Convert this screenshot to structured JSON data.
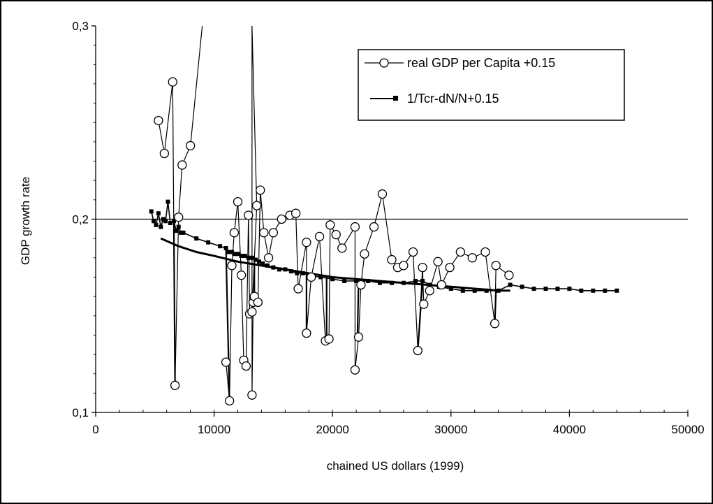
{
  "chart_data": {
    "type": "scatter",
    "title": "",
    "xlabel": "chained US dollars (1999)",
    "ylabel": "GDP growth rate",
    "xlim": [
      0,
      50000
    ],
    "ylim": [
      0.1,
      0.3
    ],
    "x_ticks": [
      0,
      10000,
      20000,
      30000,
      40000,
      50000
    ],
    "x_tick_labels": [
      "0",
      "10000",
      "20000",
      "30000",
      "40000",
      "50000"
    ],
    "y_ticks": [
      0.1,
      0.2,
      0.3
    ],
    "y_tick_labels": [
      "0,1",
      "0,2",
      "0,3"
    ],
    "reference_line_y": 0.2,
    "legend_position": "top-right",
    "grid": false,
    "series": [
      {
        "name": "real GDP per Capita +0.15",
        "marker": "open-circle",
        "color": "#000000",
        "points": [
          [
            5300,
            0.251
          ],
          [
            5800,
            0.234
          ],
          [
            6500,
            0.271
          ],
          [
            6700,
            0.114
          ],
          [
            7000,
            0.201
          ],
          [
            7300,
            0.228
          ],
          [
            8000,
            0.238
          ],
          [
            9000,
            0.3
          ]
        ],
        "points_b": [
          [
            13200,
            0.3
          ],
          [
            13200,
            0.109
          ],
          [
            13300,
            0.157
          ],
          [
            13400,
            0.16
          ],
          [
            13700,
            0.157
          ],
          [
            13900,
            0.215
          ],
          [
            14200,
            0.193
          ],
          [
            14600,
            0.18
          ],
          [
            15000,
            0.193
          ],
          [
            15700,
            0.2
          ],
          [
            16400,
            0.202
          ],
          [
            16900,
            0.203
          ],
          [
            17100,
            0.164
          ],
          [
            17800,
            0.188
          ],
          [
            17800,
            0.141
          ],
          [
            18200,
            0.17
          ],
          [
            18900,
            0.191
          ],
          [
            19400,
            0.137
          ],
          [
            19700,
            0.138
          ],
          [
            19800,
            0.197
          ],
          [
            20300,
            0.192
          ],
          [
            20800,
            0.185
          ],
          [
            21900,
            0.196
          ],
          [
            21900,
            0.122
          ],
          [
            22200,
            0.139
          ],
          [
            22400,
            0.166
          ],
          [
            22700,
            0.182
          ],
          [
            23500,
            0.196
          ],
          [
            24200,
            0.213
          ],
          [
            25000,
            0.179
          ],
          [
            25500,
            0.175
          ],
          [
            26000,
            0.176
          ],
          [
            26800,
            0.183
          ],
          [
            27200,
            0.132
          ],
          [
            27600,
            0.175
          ],
          [
            27700,
            0.156
          ],
          [
            28200,
            0.163
          ],
          [
            28900,
            0.178
          ],
          [
            29200,
            0.166
          ],
          [
            29900,
            0.175
          ],
          [
            30800,
            0.183
          ],
          [
            31800,
            0.18
          ],
          [
            32900,
            0.183
          ],
          [
            33700,
            0.146
          ],
          [
            33800,
            0.176
          ],
          [
            34900,
            0.171
          ]
        ],
        "points_c": [
          [
            11000,
            0.126
          ],
          [
            11300,
            0.106
          ],
          [
            11500,
            0.176
          ],
          [
            11700,
            0.193
          ],
          [
            12000,
            0.209
          ],
          [
            12300,
            0.171
          ],
          [
            12500,
            0.127
          ],
          [
            12700,
            0.124
          ],
          [
            12900,
            0.202
          ],
          [
            13000,
            0.151
          ],
          [
            13200,
            0.152
          ],
          [
            13600,
            0.207
          ]
        ]
      },
      {
        "name": "1/Tcr-dN/N+0.15",
        "marker": "filled-square",
        "color": "#000000",
        "points": [
          [
            4700,
            0.204
          ],
          [
            4900,
            0.199
          ],
          [
            5100,
            0.197
          ],
          [
            5300,
            0.203
          ],
          [
            5500,
            0.196
          ],
          [
            5700,
            0.2
          ],
          [
            5900,
            0.199
          ],
          [
            6100,
            0.209
          ],
          [
            6300,
            0.198
          ],
          [
            6600,
            0.199
          ],
          [
            6800,
            0.194
          ],
          [
            7000,
            0.196
          ],
          [
            7200,
            0.193
          ],
          [
            7400,
            0.193
          ],
          [
            8500,
            0.19
          ],
          [
            9500,
            0.188
          ],
          [
            10500,
            0.186
          ],
          [
            11000,
            0.185
          ],
          [
            11200,
            0.183
          ],
          [
            11500,
            0.183
          ],
          [
            11700,
            0.182
          ],
          [
            12000,
            0.182
          ],
          [
            12300,
            0.181
          ],
          [
            12600,
            0.181
          ],
          [
            12900,
            0.18
          ],
          [
            13200,
            0.18
          ],
          [
            13500,
            0.179
          ],
          [
            13800,
            0.178
          ],
          [
            14100,
            0.177
          ],
          [
            14500,
            0.176
          ],
          [
            15000,
            0.175
          ],
          [
            15500,
            0.174
          ],
          [
            16000,
            0.174
          ],
          [
            16500,
            0.173
          ],
          [
            17000,
            0.172
          ],
          [
            17500,
            0.172
          ],
          [
            18000,
            0.171
          ],
          [
            19000,
            0.17
          ],
          [
            20000,
            0.169
          ],
          [
            21000,
            0.168
          ],
          [
            22000,
            0.168
          ],
          [
            22500,
            0.168
          ],
          [
            23000,
            0.168
          ],
          [
            24000,
            0.167
          ],
          [
            25000,
            0.167
          ],
          [
            26000,
            0.167
          ],
          [
            27000,
            0.168
          ],
          [
            27600,
            0.168
          ],
          [
            28200,
            0.166
          ],
          [
            29000,
            0.165
          ],
          [
            30000,
            0.164
          ],
          [
            31000,
            0.163
          ],
          [
            32000,
            0.163
          ],
          [
            33000,
            0.163
          ],
          [
            34000,
            0.163
          ],
          [
            35000,
            0.166
          ],
          [
            36000,
            0.165
          ],
          [
            37000,
            0.164
          ],
          [
            38000,
            0.164
          ],
          [
            39000,
            0.164
          ],
          [
            40000,
            0.164
          ],
          [
            41000,
            0.163
          ],
          [
            42000,
            0.163
          ],
          [
            43000,
            0.163
          ],
          [
            44000,
            0.163
          ]
        ],
        "drops": [
          [
            [
              6600,
              0.198
            ],
            [
              6700,
              0.114
            ]
          ],
          [
            [
              11000,
              0.185
            ],
            [
              11300,
              0.106
            ]
          ],
          [
            [
              13400,
              0.18
            ],
            [
              13400,
              0.157
            ]
          ],
          [
            [
              17800,
              0.171
            ],
            [
              17800,
              0.141
            ]
          ],
          [
            [
              19500,
              0.17
            ],
            [
              19500,
              0.138
            ]
          ],
          [
            [
              22200,
              0.168
            ],
            [
              22100,
              0.139
            ]
          ],
          [
            [
              27600,
              0.168
            ],
            [
              27200,
              0.132
            ]
          ],
          [
            [
              33800,
              0.163
            ],
            [
              33700,
              0.146
            ]
          ]
        ]
      }
    ],
    "trend_line": {
      "style": "thick",
      "points": [
        [
          5500,
          0.19
        ],
        [
          7000,
          0.186
        ],
        [
          8500,
          0.183
        ],
        [
          10000,
          0.181
        ],
        [
          12000,
          0.178
        ],
        [
          14000,
          0.176
        ],
        [
          16000,
          0.174
        ],
        [
          18000,
          0.172
        ],
        [
          20000,
          0.17
        ],
        [
          22000,
          0.169
        ],
        [
          24000,
          0.168
        ],
        [
          26000,
          0.167
        ],
        [
          28000,
          0.166
        ],
        [
          30000,
          0.165
        ],
        [
          32000,
          0.164
        ],
        [
          34000,
          0.163
        ],
        [
          35000,
          0.163
        ]
      ]
    }
  }
}
